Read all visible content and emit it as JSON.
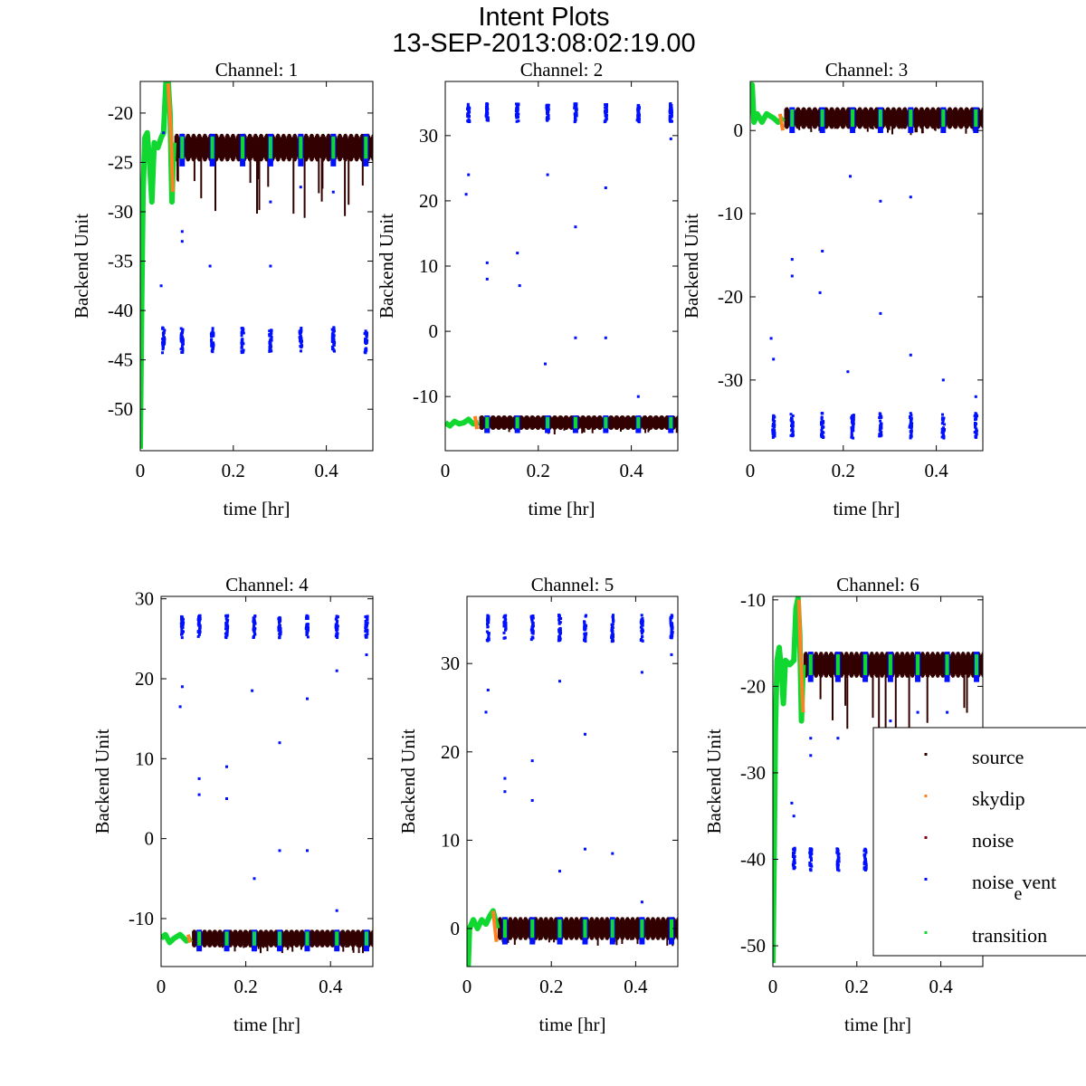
{
  "title": "Intent Plots",
  "subtitle": "13-SEP-2013:08:02:19.00",
  "colors": {
    "source": "#330000",
    "skydip": "#ff8020",
    "noise": "#8b0010",
    "noise_event": "#0010ff",
    "transition": "#10d830"
  },
  "legend": {
    "placement": "right",
    "entries": [
      {
        "key": "source",
        "label": "source"
      },
      {
        "key": "skydip",
        "label": "skydip"
      },
      {
        "key": "noise",
        "label": "noise"
      },
      {
        "key": "noise_event",
        "label": "noise",
        "sub": "e",
        "tail": "vent"
      },
      {
        "key": "transition",
        "label": "transition"
      }
    ]
  },
  "chart_data": [
    {
      "type": "scatter",
      "title": "Channel: 1",
      "xlabel": "time [hr]",
      "ylabel": "Backend Unit",
      "xlim": [
        0,
        0.5
      ],
      "ylim": [
        -54.2,
        -16.8
      ],
      "xticks": [
        {
          "v": 0,
          "label": "0"
        },
        {
          "v": 0.2,
          "label": "0.2"
        },
        {
          "v": 0.4,
          "label": "0.4"
        }
      ],
      "yticks": [
        {
          "v": -50,
          "label": "-50"
        },
        {
          "v": -45,
          "label": "-45"
        },
        {
          "v": -40,
          "label": "-40"
        },
        {
          "v": -35,
          "label": "-35"
        },
        {
          "v": -30,
          "label": "-30"
        },
        {
          "v": -25,
          "label": "-25"
        },
        {
          "v": -20,
          "label": "-20"
        }
      ],
      "source": {
        "start": 0.075,
        "level": -23.5,
        "spread": 1.4,
        "dip": 6
      },
      "event_level": -43,
      "event_spread": 1.3,
      "event_times": [
        0.05,
        0.09,
        0.155,
        0.22,
        0.28,
        0.345,
        0.415,
        0.485
      ],
      "transition": [
        [
          0,
          -54
        ],
        [
          0.003,
          -40
        ],
        [
          0.006,
          -28
        ],
        [
          0.01,
          -22.5
        ],
        [
          0.015,
          -22
        ],
        [
          0.02,
          -25
        ],
        [
          0.025,
          -29
        ],
        [
          0.03,
          -23
        ],
        [
          0.038,
          -23.5
        ],
        [
          0.045,
          -22.5
        ],
        [
          0.05,
          -22
        ],
        [
          0.055,
          -17
        ],
        [
          0.06,
          -16.8
        ],
        [
          0.064,
          -20
        ],
        [
          0.068,
          -29
        ],
        [
          0.072,
          -23
        ]
      ],
      "skydip": [
        [
          0.06,
          -17
        ],
        [
          0.066,
          -22
        ],
        [
          0.07,
          -28
        ]
      ],
      "outliers": [
        [
          0.045,
          -37.5
        ],
        [
          0.05,
          -22
        ],
        [
          0.09,
          -32
        ],
        [
          0.09,
          -33
        ],
        [
          0.15,
          -35.5
        ],
        [
          0.28,
          -29
        ],
        [
          0.28,
          -35.5
        ],
        [
          0.345,
          -27.5
        ],
        [
          0.415,
          -28
        ]
      ]
    },
    {
      "type": "scatter",
      "title": "Channel: 2",
      "xlabel": "time [hr]",
      "ylabel": "Backend Unit",
      "xlim": [
        0,
        0.5
      ],
      "ylim": [
        -18.3,
        38.3
      ],
      "xticks": [
        {
          "v": 0,
          "label": "0"
        },
        {
          "v": 0.2,
          "label": "0.2"
        },
        {
          "v": 0.4,
          "label": "0.4"
        }
      ],
      "yticks": [
        {
          "v": -10,
          "label": "-10"
        },
        {
          "v": 0,
          "label": "0"
        },
        {
          "v": 10,
          "label": "10"
        },
        {
          "v": 20,
          "label": "20"
        },
        {
          "v": 30,
          "label": "30"
        }
      ],
      "source": {
        "start": 0.075,
        "level": -14,
        "spread": 1.1,
        "dip": 0.8
      },
      "event_level": 33.5,
      "event_spread": 1.4,
      "event_times": [
        0.05,
        0.09,
        0.155,
        0.22,
        0.28,
        0.345,
        0.415,
        0.485
      ],
      "transition": [
        [
          0,
          -14
        ],
        [
          0.01,
          -14.5
        ],
        [
          0.02,
          -13.8
        ],
        [
          0.03,
          -14.2
        ],
        [
          0.04,
          -14
        ],
        [
          0.05,
          -13.5
        ],
        [
          0.06,
          -14.2
        ],
        [
          0.072,
          -14
        ]
      ],
      "skydip": [
        [
          0.064,
          -13
        ],
        [
          0.068,
          -15
        ]
      ],
      "outliers": [
        [
          0.045,
          21
        ],
        [
          0.05,
          24
        ],
        [
          0.09,
          10.5
        ],
        [
          0.09,
          8
        ],
        [
          0.155,
          12
        ],
        [
          0.16,
          7
        ],
        [
          0.215,
          -5
        ],
        [
          0.22,
          24
        ],
        [
          0.28,
          16
        ],
        [
          0.28,
          -1
        ],
        [
          0.345,
          22
        ],
        [
          0.345,
          -1
        ],
        [
          0.485,
          29.5
        ],
        [
          0.415,
          -10
        ]
      ]
    },
    {
      "type": "scatter",
      "title": "Channel: 3",
      "xlabel": "time [hr]",
      "ylabel": "Backend Unit",
      "xlim": [
        0,
        0.5
      ],
      "ylim": [
        -38.5,
        5.9
      ],
      "xticks": [
        {
          "v": 0,
          "label": "0"
        },
        {
          "v": 0.2,
          "label": "0.2"
        },
        {
          "v": 0.4,
          "label": "0.4"
        }
      ],
      "yticks": [
        {
          "v": -30,
          "label": "-30"
        },
        {
          "v": -20,
          "label": "-20"
        },
        {
          "v": -10,
          "label": "-10"
        },
        {
          "v": 0,
          "label": "0"
        }
      ],
      "source": {
        "start": 0.075,
        "level": 1.5,
        "spread": 1.3,
        "dip": 0.8
      },
      "event_level": -35.5,
      "event_spread": 1.5,
      "event_times": [
        0.05,
        0.09,
        0.155,
        0.22,
        0.28,
        0.345,
        0.415,
        0.485
      ],
      "transition": [
        [
          0,
          2
        ],
        [
          0.004,
          5.5
        ],
        [
          0.008,
          1
        ],
        [
          0.015,
          2
        ],
        [
          0.025,
          1
        ],
        [
          0.035,
          2
        ],
        [
          0.05,
          1.5
        ],
        [
          0.06,
          1
        ],
        [
          0.072,
          1.5
        ]
      ],
      "skydip": [
        [
          0.064,
          2
        ],
        [
          0.07,
          0
        ]
      ],
      "outliers": [
        [
          0.045,
          -25
        ],
        [
          0.05,
          -27.5
        ],
        [
          0.09,
          -15.5
        ],
        [
          0.09,
          -17.5
        ],
        [
          0.155,
          -14.5
        ],
        [
          0.15,
          -19.5
        ],
        [
          0.21,
          -29
        ],
        [
          0.215,
          -5.5
        ],
        [
          0.28,
          -8.5
        ],
        [
          0.28,
          -22
        ],
        [
          0.345,
          -8
        ],
        [
          0.345,
          -27
        ],
        [
          0.415,
          -30
        ],
        [
          0.485,
          -32
        ]
      ]
    },
    {
      "type": "scatter",
      "title": "Channel: 4",
      "xlabel": "time [hr]",
      "ylabel": "Backend Unit",
      "xlim": [
        0,
        0.5
      ],
      "ylim": [
        -16,
        30.3
      ],
      "xticks": [
        {
          "v": 0,
          "label": "0"
        },
        {
          "v": 0.2,
          "label": "0.2"
        },
        {
          "v": 0.4,
          "label": "0.4"
        }
      ],
      "yticks": [
        {
          "v": -10,
          "label": "-10"
        },
        {
          "v": 0,
          "label": "0"
        },
        {
          "v": 10,
          "label": "10"
        },
        {
          "v": 20,
          "label": "20"
        },
        {
          "v": 30,
          "label": "30"
        }
      ],
      "source": {
        "start": 0.075,
        "level": -12.5,
        "spread": 1.1,
        "dip": 0.8
      },
      "event_level": 26.5,
      "event_spread": 1.4,
      "event_times": [
        0.05,
        0.09,
        0.155,
        0.22,
        0.28,
        0.345,
        0.415,
        0.485
      ],
      "transition": [
        [
          0,
          -12.5
        ],
        [
          0.01,
          -12
        ],
        [
          0.02,
          -13
        ],
        [
          0.03,
          -12.5
        ],
        [
          0.045,
          -12
        ],
        [
          0.06,
          -12.8
        ],
        [
          0.072,
          -12.5
        ]
      ],
      "skydip": [
        [
          0.064,
          -12
        ],
        [
          0.068,
          -13
        ]
      ],
      "outliers": [
        [
          0.045,
          16.5
        ],
        [
          0.05,
          19
        ],
        [
          0.09,
          7.5
        ],
        [
          0.09,
          5.5
        ],
        [
          0.155,
          9
        ],
        [
          0.155,
          5
        ],
        [
          0.215,
          18.5
        ],
        [
          0.22,
          -5
        ],
        [
          0.28,
          12
        ],
        [
          0.28,
          -1.5
        ],
        [
          0.345,
          17.5
        ],
        [
          0.345,
          -1.5
        ],
        [
          0.415,
          21
        ],
        [
          0.415,
          -9
        ],
        [
          0.485,
          23
        ]
      ]
    },
    {
      "type": "scatter",
      "title": "Channel: 5",
      "xlabel": "time [hr]",
      "ylabel": "Backend Unit",
      "xlim": [
        0,
        0.5
      ],
      "ylim": [
        -4.3,
        37.6
      ],
      "xticks": [
        {
          "v": 0,
          "label": "0"
        },
        {
          "v": 0.2,
          "label": "0.2"
        },
        {
          "v": 0.4,
          "label": "0.4"
        }
      ],
      "yticks": [
        {
          "v": 0,
          "label": "0"
        },
        {
          "v": 10,
          "label": "10"
        },
        {
          "v": 20,
          "label": "20"
        },
        {
          "v": 30,
          "label": "30"
        }
      ],
      "source": {
        "start": 0.075,
        "level": 0,
        "spread": 1.3,
        "dip": 0.8
      },
      "event_level": 34,
      "event_spread": 1.5,
      "event_times": [
        0.05,
        0.09,
        0.155,
        0.22,
        0.28,
        0.345,
        0.415,
        0.485
      ],
      "transition": [
        [
          0,
          -1
        ],
        [
          0.003,
          -4.2
        ],
        [
          0.006,
          0
        ],
        [
          0.015,
          1
        ],
        [
          0.025,
          0
        ],
        [
          0.035,
          1
        ],
        [
          0.045,
          0.5
        ],
        [
          0.055,
          1.5
        ],
        [
          0.062,
          2
        ],
        [
          0.072,
          0
        ]
      ],
      "skydip": [
        [
          0.062,
          2
        ],
        [
          0.07,
          -1.5
        ]
      ],
      "outliers": [
        [
          0.045,
          24.5
        ],
        [
          0.05,
          27
        ],
        [
          0.09,
          17
        ],
        [
          0.09,
          15.5
        ],
        [
          0.155,
          19
        ],
        [
          0.155,
          14.5
        ],
        [
          0.22,
          28
        ],
        [
          0.22,
          6.5
        ],
        [
          0.28,
          22
        ],
        [
          0.28,
          9
        ],
        [
          0.345,
          8.5
        ],
        [
          0.415,
          29
        ],
        [
          0.415,
          3
        ],
        [
          0.485,
          31
        ]
      ]
    },
    {
      "type": "scatter",
      "title": "Channel: 6",
      "xlabel": "time [hr]",
      "ylabel": "Backend Unit",
      "xlim": [
        0,
        0.5
      ],
      "ylim": [
        -52.4,
        -9.6
      ],
      "xticks": [
        {
          "v": 0,
          "label": "0"
        },
        {
          "v": 0.2,
          "label": "0.2"
        },
        {
          "v": 0.4,
          "label": "0.4"
        }
      ],
      "yticks": [
        {
          "v": -50,
          "label": "-50"
        },
        {
          "v": -40,
          "label": "-40"
        },
        {
          "v": -30,
          "label": "-30"
        },
        {
          "v": -20,
          "label": "-20"
        },
        {
          "v": -10,
          "label": "-10"
        }
      ],
      "source": {
        "start": 0.075,
        "level": -17.5,
        "spread": 1.5,
        "dip": 7
      },
      "event_level": -40,
      "event_spread": 1.3,
      "event_times": [
        0.05,
        0.09,
        0.155,
        0.22,
        0.28,
        0.345,
        0.415,
        0.485
      ],
      "transition": [
        [
          0,
          -52
        ],
        [
          0.003,
          -40
        ],
        [
          0.006,
          -25
        ],
        [
          0.01,
          -17
        ],
        [
          0.015,
          -15.5
        ],
        [
          0.02,
          -18
        ],
        [
          0.025,
          -22
        ],
        [
          0.03,
          -17
        ],
        [
          0.04,
          -17.5
        ],
        [
          0.05,
          -17
        ],
        [
          0.055,
          -11
        ],
        [
          0.06,
          -9.8
        ],
        [
          0.064,
          -14
        ],
        [
          0.068,
          -24
        ],
        [
          0.072,
          -17.5
        ]
      ],
      "skydip": [
        [
          0.062,
          -10
        ],
        [
          0.066,
          -16
        ],
        [
          0.072,
          -23
        ]
      ],
      "outliers": [
        [
          0.045,
          -33.5
        ],
        [
          0.05,
          -35
        ],
        [
          0.09,
          -26
        ],
        [
          0.09,
          -28
        ],
        [
          0.155,
          -26
        ],
        [
          0.28,
          -24
        ],
        [
          0.345,
          -23
        ],
        [
          0.415,
          -23
        ]
      ]
    }
  ]
}
